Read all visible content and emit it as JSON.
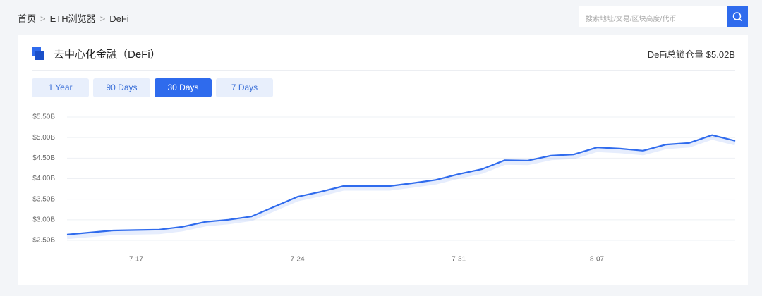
{
  "breadcrumb": [
    "首页",
    "ETH浏览器",
    "DeFi"
  ],
  "breadcrumb_separator": ">",
  "search": {
    "placeholder": "搜索地址/交易/区块高度/代币"
  },
  "card": {
    "title": "去中心化金融（DeFi）",
    "total_label": "DeFi总锁仓量 $5.02B"
  },
  "buttons": [
    {
      "label": "1 Year",
      "active": false
    },
    {
      "label": "90 Days",
      "active": false
    },
    {
      "label": "30 Days",
      "active": true
    },
    {
      "label": "7 Days",
      "active": false
    }
  ],
  "chart_data": {
    "type": "line",
    "color": "#2f6bed",
    "grid": true,
    "categories": [
      null,
      null,
      null,
      "7-17",
      null,
      null,
      null,
      null,
      null,
      null,
      "7-24",
      null,
      null,
      null,
      null,
      null,
      null,
      "7-31",
      null,
      null,
      null,
      null,
      null,
      "8-07",
      null,
      null,
      null,
      null,
      null,
      null
    ],
    "values": [
      2.64,
      2.69,
      2.74,
      2.75,
      2.76,
      2.83,
      2.95,
      3.0,
      3.08,
      3.32,
      3.56,
      3.68,
      3.82,
      3.82,
      3.82,
      3.89,
      3.97,
      4.11,
      4.23,
      4.45,
      4.44,
      4.56,
      4.59,
      4.76,
      4.73,
      4.68,
      4.83,
      4.87,
      5.06,
      4.92
    ],
    "ylim": [
      2.5,
      5.5
    ],
    "yticks": [
      {
        "value": 2.5,
        "label": "$2.50B"
      },
      {
        "value": 3.0,
        "label": "$3.00B"
      },
      {
        "value": 3.5,
        "label": "$3.50B"
      },
      {
        "value": 4.0,
        "label": "$4.00B"
      },
      {
        "value": 4.5,
        "label": "$4.50B"
      },
      {
        "value": 5.0,
        "label": "$5.00B"
      },
      {
        "value": 5.5,
        "label": "$5.50B"
      }
    ]
  }
}
